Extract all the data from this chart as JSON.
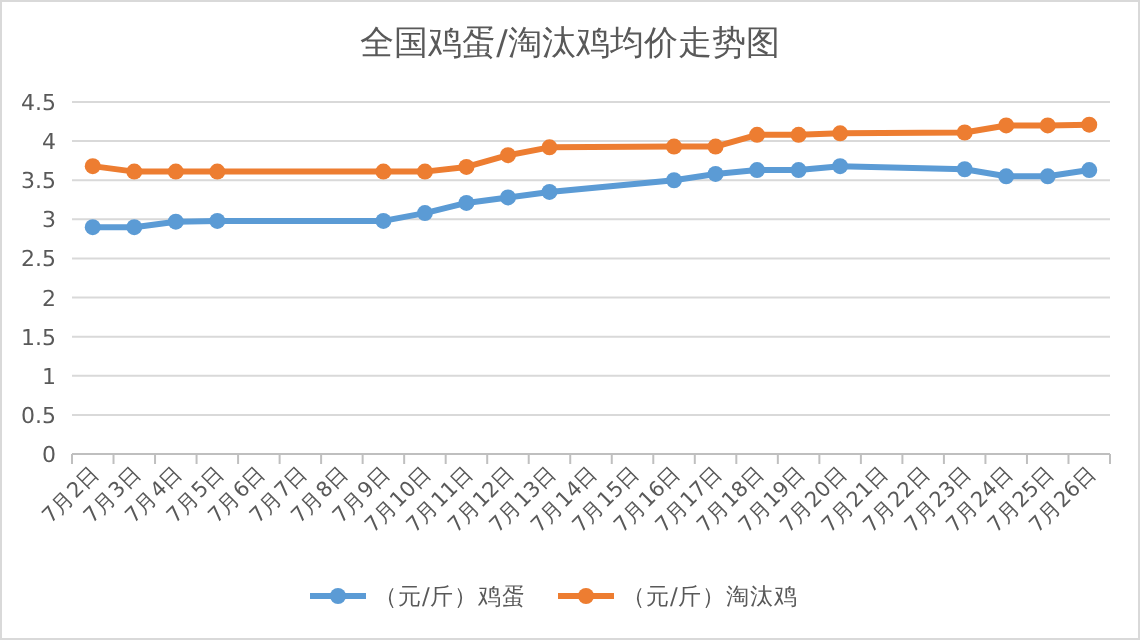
{
  "chart_data": {
    "type": "line",
    "title": "全国鸡蛋/淘汰鸡均价走势图",
    "categories": [
      "7月2日",
      "7月3日",
      "7月4日",
      "7月5日",
      "7月6日",
      "7月7日",
      "7月8日",
      "7月9日",
      "7月10日",
      "7月11日",
      "7月12日",
      "7月13日",
      "7月14日",
      "7月15日",
      "7月16日",
      "7月17日",
      "7月18日",
      "7月19日",
      "7月20日",
      "7月21日",
      "7月22日",
      "7月23日",
      "7月24日",
      "7月25日",
      "7月26日"
    ],
    "series": [
      {
        "name": "（元/斤）鸡蛋",
        "color": "#5b9bd5",
        "values": [
          2.9,
          2.9,
          2.97,
          2.98,
          null,
          null,
          null,
          2.98,
          3.08,
          3.21,
          3.28,
          3.35,
          null,
          null,
          3.5,
          3.58,
          3.63,
          3.63,
          3.68,
          null,
          null,
          3.64,
          3.55,
          3.55,
          3.63
        ]
      },
      {
        "name": "（元/斤）淘汰鸡",
        "color": "#ed7d31",
        "values": [
          3.68,
          3.61,
          3.61,
          3.61,
          null,
          null,
          null,
          3.61,
          3.61,
          3.67,
          3.82,
          3.92,
          null,
          null,
          3.93,
          3.93,
          4.08,
          4.08,
          4.1,
          null,
          null,
          4.11,
          4.2,
          4.2,
          4.21
        ]
      }
    ],
    "ylim": [
      0,
      4.5
    ],
    "yticks": [
      0,
      0.5,
      1,
      1.5,
      2,
      2.5,
      3,
      3.5,
      4,
      4.5
    ],
    "grid": "y",
    "legend": "bottom",
    "marker": "circle",
    "line_style": "solid"
  }
}
